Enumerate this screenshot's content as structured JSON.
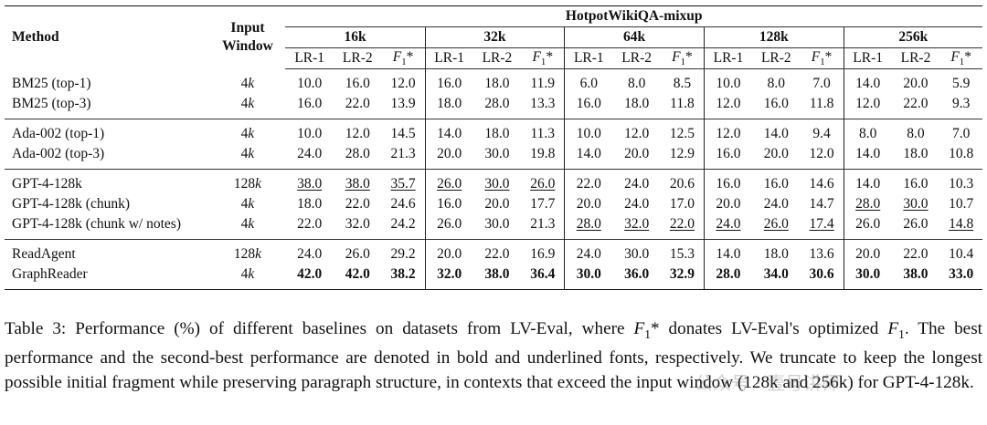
{
  "header": {
    "method": "Method",
    "input_window": "Input\nWindow",
    "dataset": "HotpotWikiQA-mixup",
    "lengths": [
      "16k",
      "32k",
      "64k",
      "128k",
      "256k"
    ],
    "metrics": [
      "LR-1",
      "LR-2",
      "F1*"
    ]
  },
  "groups": [
    {
      "rows": [
        {
          "method": "BM25 (top-1)",
          "window": "4k",
          "values": [
            "10.0",
            "16.0",
            "12.0",
            "16.0",
            "18.0",
            "11.9",
            "6.0",
            "8.0",
            "8.5",
            "10.0",
            "8.0",
            "7.0",
            "14.0",
            "20.0",
            "5.9"
          ],
          "styles": [
            "",
            "",
            "",
            "",
            "",
            "",
            "",
            "",
            "",
            "",
            "",
            "",
            "",
            "",
            ""
          ]
        },
        {
          "method": "BM25 (top-3)",
          "window": "4k",
          "values": [
            "16.0",
            "22.0",
            "13.9",
            "18.0",
            "28.0",
            "13.3",
            "16.0",
            "18.0",
            "11.8",
            "12.0",
            "16.0",
            "11.8",
            "12.0",
            "22.0",
            "9.3"
          ],
          "styles": [
            "",
            "",
            "",
            "",
            "",
            "",
            "",
            "",
            "",
            "",
            "",
            "",
            "",
            "",
            ""
          ]
        }
      ]
    },
    {
      "rows": [
        {
          "method": "Ada-002 (top-1)",
          "window": "4k",
          "values": [
            "10.0",
            "12.0",
            "14.5",
            "14.0",
            "18.0",
            "11.3",
            "10.0",
            "12.0",
            "12.5",
            "12.0",
            "14.0",
            "9.4",
            "8.0",
            "8.0",
            "7.0"
          ],
          "styles": [
            "",
            "",
            "",
            "",
            "",
            "",
            "",
            "",
            "",
            "",
            "",
            "",
            "",
            "",
            ""
          ]
        },
        {
          "method": "Ada-002 (top-3)",
          "window": "4k",
          "values": [
            "24.0",
            "28.0",
            "21.3",
            "20.0",
            "30.0",
            "19.8",
            "14.0",
            "20.0",
            "12.9",
            "16.0",
            "20.0",
            "12.0",
            "14.0",
            "18.0",
            "10.8"
          ],
          "styles": [
            "",
            "",
            "",
            "",
            "",
            "",
            "",
            "",
            "",
            "",
            "",
            "",
            "",
            "",
            ""
          ]
        }
      ]
    },
    {
      "rows": [
        {
          "method": "GPT-4-128k",
          "window": "128k",
          "values": [
            "38.0",
            "38.0",
            "35.7",
            "26.0",
            "30.0",
            "26.0",
            "22.0",
            "24.0",
            "20.6",
            "16.0",
            "16.0",
            "14.6",
            "14.0",
            "16.0",
            "10.3"
          ],
          "styles": [
            "u",
            "u",
            "u",
            "u",
            "u",
            "u",
            "",
            "",
            "",
            "",
            "",
            "",
            "",
            "",
            ""
          ]
        },
        {
          "method": "GPT-4-128k (chunk)",
          "window": "4k",
          "values": [
            "18.0",
            "22.0",
            "24.6",
            "16.0",
            "20.0",
            "17.7",
            "20.0",
            "24.0",
            "17.0",
            "20.0",
            "24.0",
            "14.7",
            "28.0",
            "30.0",
            "10.7"
          ],
          "styles": [
            "",
            "",
            "",
            "",
            "",
            "",
            "",
            "",
            "",
            "",
            "",
            "",
            "u",
            "u",
            ""
          ]
        },
        {
          "method": "GPT-4-128k (chunk w/ notes)",
          "window": "4k",
          "values": [
            "22.0",
            "32.0",
            "24.2",
            "26.0",
            "30.0",
            "21.3",
            "28.0",
            "32.0",
            "22.0",
            "24.0",
            "26.0",
            "17.4",
            "26.0",
            "26.0",
            "14.8"
          ],
          "styles": [
            "",
            "",
            "",
            "",
            "",
            "",
            "u",
            "u",
            "u",
            "u",
            "u",
            "u",
            "",
            "",
            "u"
          ]
        }
      ]
    },
    {
      "rows": [
        {
          "method": "ReadAgent",
          "window": "128k",
          "values": [
            "24.0",
            "26.0",
            "29.2",
            "20.0",
            "22.0",
            "16.9",
            "24.0",
            "30.0",
            "15.3",
            "14.0",
            "18.0",
            "13.6",
            "20.0",
            "22.0",
            "10.4"
          ],
          "styles": [
            "",
            "",
            "",
            "",
            "",
            "",
            "",
            "",
            "",
            "",
            "",
            "",
            "",
            "",
            ""
          ]
        },
        {
          "method": "GraphReader",
          "window": "4k",
          "values": [
            "42.0",
            "42.0",
            "38.2",
            "32.0",
            "38.0",
            "36.4",
            "30.0",
            "36.0",
            "32.9",
            "28.0",
            "34.0",
            "30.6",
            "30.0",
            "38.0",
            "33.0"
          ],
          "styles": [
            "b",
            "b",
            "b",
            "b",
            "b",
            "b",
            "b",
            "b",
            "b",
            "b",
            "b",
            "b",
            "b",
            "b",
            "b"
          ]
        }
      ]
    }
  ],
  "caption": {
    "label": "Table 3:",
    "text": "Performance (%) of different baselines on datasets from LV-Eval, where F1* donates LV-Eval's optimized F1. The best performance and the second-best performance are denoted in bold and underlined fonts, respectively. We truncate to keep the longest possible initial fragment while preserving paragraph structure, in contexts that exceed the input window (128k and 256k) for GPT-4-128k."
  },
  "watermark": "公众号 · 壹号讲师"
}
